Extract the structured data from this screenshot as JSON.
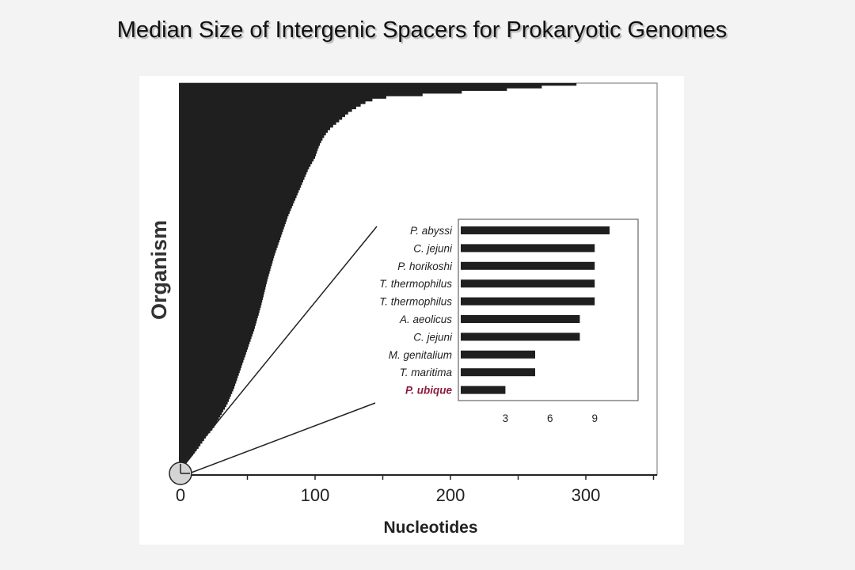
{
  "chart_data": [
    {
      "type": "area",
      "title": "Median Size of Intergenic Spacers for Prokaryotic Genomes",
      "xlabel": "Nucleotides",
      "ylabel": "Organism",
      "xlim": [
        0,
        350
      ],
      "x_ticks": [
        "0",
        "100",
        "200",
        "300"
      ],
      "x_tick_values": [
        0,
        100,
        200,
        300
      ],
      "grid": false,
      "curve": {
        "x": [
          3,
          8,
          12,
          16,
          20,
          25,
          30,
          35,
          40,
          45,
          50,
          55,
          60,
          65,
          70,
          75,
          80,
          85,
          90,
          95,
          100,
          103,
          106,
          110,
          115,
          120,
          125,
          130,
          135,
          140,
          147,
          157,
          185,
          205,
          245,
          275,
          306
        ],
        "rank_fraction_from_bottom": [
          0.0,
          0.04,
          0.06,
          0.08,
          0.1,
          0.12,
          0.15,
          0.18,
          0.22,
          0.27,
          0.32,
          0.37,
          0.43,
          0.5,
          0.56,
          0.61,
          0.66,
          0.7,
          0.74,
          0.78,
          0.81,
          0.84,
          0.86,
          0.88,
          0.895,
          0.91,
          0.925,
          0.936,
          0.946,
          0.955,
          0.96,
          0.966,
          0.971,
          0.976,
          0.984,
          0.992,
          1.0
        ]
      },
      "fill_color": "#1f1f1f"
    },
    {
      "type": "bar",
      "orientation": "horizontal",
      "categories": [
        "P. abyssi",
        "C. jejuni",
        "P. horikoshi",
        "T. thermophilus",
        "T. thermophilus",
        "A. aeolicus",
        "C. jejuni",
        "M. genitalium",
        "T. maritima",
        "P. ubique"
      ],
      "values": [
        10,
        9,
        9,
        9,
        9,
        8,
        8,
        5,
        5,
        3
      ],
      "highlight": "P. ubique",
      "highlight_color": "#8b1c3c",
      "bar_color": "#1f1f1f",
      "x_ticks": [
        "3",
        "6",
        "9"
      ],
      "x_tick_values": [
        3,
        6,
        9
      ],
      "xlim": [
        0,
        12
      ]
    }
  ]
}
